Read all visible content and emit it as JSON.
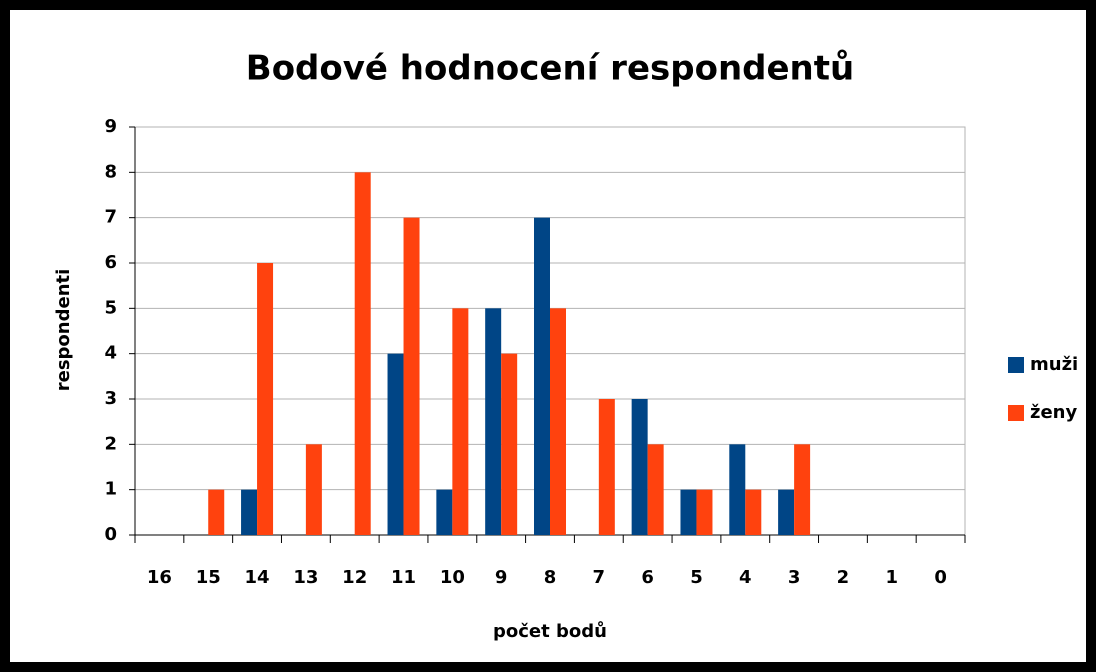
{
  "chart_data": {
    "type": "bar",
    "title": "Bodové hodnocení respondentů",
    "x_label": "počet bodů",
    "y_label": "respondenti",
    "categories": [
      "16",
      "15",
      "14",
      "13",
      "12",
      "11",
      "10",
      "9",
      "8",
      "7",
      "6",
      "5",
      "4",
      "3",
      "2",
      "1",
      "0"
    ],
    "series": [
      {
        "name": "muži",
        "color": "#004586",
        "values": [
          0,
          0,
          1,
          0,
          0,
          4,
          1,
          5,
          7,
          0,
          3,
          1,
          2,
          1,
          0,
          0,
          0
        ]
      },
      {
        "name": "ženy",
        "color": "#ff420e",
        "values": [
          0,
          1,
          6,
          2,
          8,
          7,
          5,
          4,
          5,
          3,
          2,
          1,
          1,
          2,
          0,
          0,
          0
        ]
      }
    ],
    "ylim": [
      0,
      9
    ],
    "yticks": [
      0,
      1,
      2,
      3,
      4,
      5,
      6,
      7,
      8,
      9
    ],
    "grid": true,
    "legend": "right"
  }
}
